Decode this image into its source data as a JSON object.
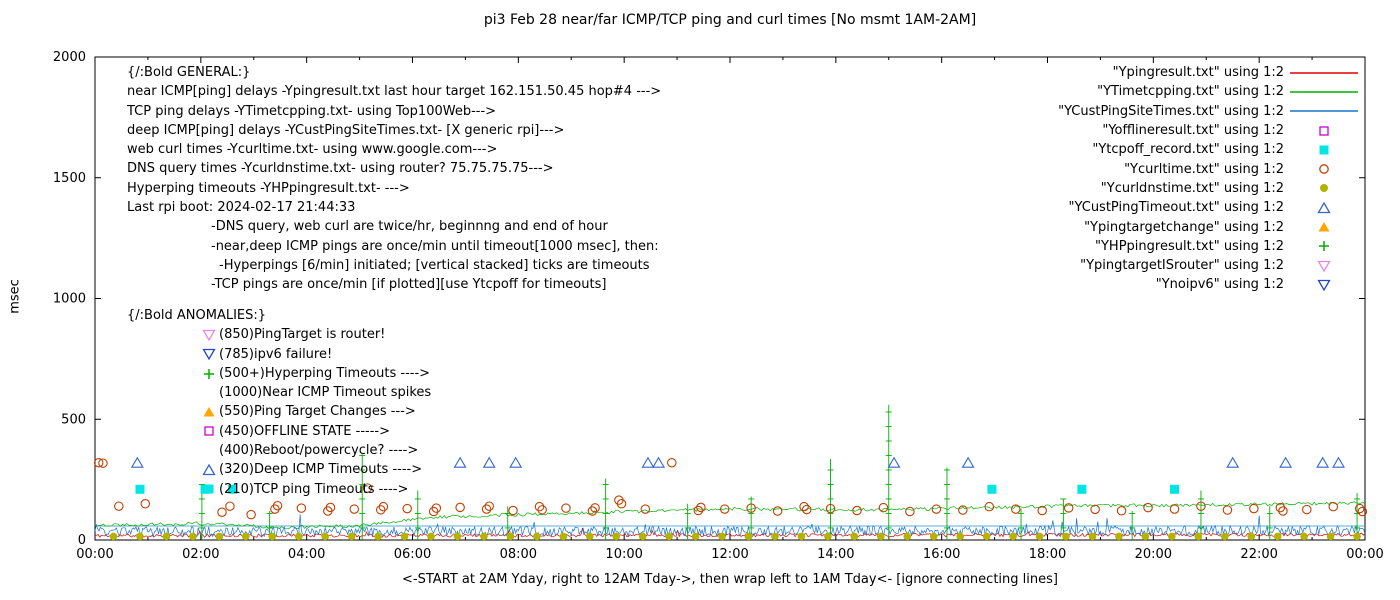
{
  "chart_data": {
    "type": "line",
    "title": "pi3 Feb 28  near/far ICMP/TCP ping and curl times [No msmt 1AM-2AM]",
    "xlabel": "<-START at 2AM Yday, right to 12AM Tday->, then wrap left to 1AM Tday<- [ignore connecting lines]",
    "ylabel": "msec",
    "xlim": [
      0,
      24
    ],
    "ylim": [
      0,
      2000
    ],
    "xtick_hours": [
      0,
      2,
      4,
      6,
      8,
      10,
      12,
      14,
      16,
      18,
      20,
      22,
      24
    ],
    "xtick_labels": [
      "00:00",
      "02:00",
      "04:00",
      "06:00",
      "08:00",
      "10:00",
      "12:00",
      "14:00",
      "16:00",
      "18:00",
      "20:00",
      "22:00",
      "00:00"
    ],
    "ytick_values": [
      0,
      500,
      1000,
      1500,
      2000
    ],
    "grid": false,
    "legend_position": "top-right",
    "colors": {
      "near_icmp_red": "#e60000",
      "tcp_green": "#00b000",
      "deep_blue": "#1874cd",
      "offline_magenta": "#cc00cc",
      "tcpoff_cyan": "#00e5e5",
      "curl_darkorange": "#c04000",
      "dns_olive": "#b3b300",
      "timeout_blue": "#3366cc",
      "targetchange_orange": "#ffa500",
      "hyperping": "#00b000",
      "isrouter_violet": "#ee82ee",
      "noipv6_blue": "#2244cc",
      "flat_line_blue": "#2090d0"
    },
    "lines": [
      {
        "name": "Ypingresult.txt",
        "color": "#e60000",
        "seed": 11,
        "step": 0.03,
        "noise": 7,
        "spike_prob": 0.01,
        "spike_max": 35,
        "trend": [
          [
            0,
            18
          ],
          [
            24,
            22
          ]
        ]
      },
      {
        "name": "YTimetcpping.txt",
        "color": "#00b000",
        "seed": 22,
        "step": 0.04,
        "noise": 7,
        "spike_prob": 0.008,
        "spike_max": 40,
        "trend": [
          [
            0,
            62
          ],
          [
            2,
            68
          ],
          [
            3.5,
            52
          ],
          [
            5,
            60
          ],
          [
            6.5,
            95
          ],
          [
            9,
            112
          ],
          [
            12,
            128
          ],
          [
            15,
            125
          ],
          [
            18,
            140
          ],
          [
            21,
            146
          ],
          [
            24,
            152
          ]
        ]
      },
      {
        "name": "YCustPingSiteTimes.txt",
        "color": "#1874cd",
        "seed": 33,
        "step": 0.025,
        "noise": 20,
        "spike_prob": 0.02,
        "spike_max": 55,
        "trend": [
          [
            0,
            34
          ],
          [
            24,
            40
          ]
        ]
      }
    ],
    "flat_line": {
      "y": 58,
      "color": "#2090d0"
    },
    "hyperping_columns": [
      {
        "x": 2.02,
        "top": 230
      },
      {
        "x": 3.3,
        "top": 120
      },
      {
        "x": 5.05,
        "top": 355
      },
      {
        "x": 6.1,
        "top": 205
      },
      {
        "x": 7.8,
        "top": 140
      },
      {
        "x": 9.65,
        "top": 255
      },
      {
        "x": 11.2,
        "top": 150
      },
      {
        "x": 12.4,
        "top": 180
      },
      {
        "x": 13.9,
        "top": 335
      },
      {
        "x": 15.0,
        "top": 560
      },
      {
        "x": 16.1,
        "top": 300
      },
      {
        "x": 17.5,
        "top": 130
      },
      {
        "x": 18.3,
        "top": 170
      },
      {
        "x": 19.6,
        "top": 120
      },
      {
        "x": 20.9,
        "top": 205
      },
      {
        "x": 22.2,
        "top": 140
      },
      {
        "x": 23.85,
        "top": 195
      }
    ],
    "scatter": [
      {
        "name": "Yofflineresult.txt",
        "marker": "square-open",
        "color": "#cc00cc",
        "points": []
      },
      {
        "name": "Ytcpoff_record.txt",
        "marker": "square-fill",
        "color": "#00e5e5",
        "points": [
          [
            0.85,
            210
          ],
          [
            2.08,
            210
          ],
          [
            2.6,
            210
          ],
          [
            16.95,
            210
          ],
          [
            18.65,
            210
          ],
          [
            20.4,
            210
          ]
        ]
      },
      {
        "name": "Ycurltime.txt",
        "marker": "circle-open",
        "color": "#c04000",
        "points": [
          [
            0.07,
            320
          ],
          [
            0.15,
            318
          ],
          [
            0.45,
            140
          ],
          [
            0.95,
            150
          ],
          [
            2.4,
            115
          ],
          [
            2.55,
            140
          ],
          [
            2.95,
            105
          ],
          [
            3.4,
            128
          ],
          [
            3.45,
            142
          ],
          [
            3.9,
            132
          ],
          [
            4.4,
            120
          ],
          [
            4.45,
            135
          ],
          [
            4.9,
            128
          ],
          [
            5.15,
            215
          ],
          [
            5.4,
            125
          ],
          [
            5.45,
            138
          ],
          [
            5.9,
            130
          ],
          [
            6.4,
            118
          ],
          [
            6.45,
            132
          ],
          [
            6.9,
            135
          ],
          [
            7.4,
            128
          ],
          [
            7.45,
            140
          ],
          [
            7.9,
            122
          ],
          [
            8.4,
            138
          ],
          [
            8.45,
            125
          ],
          [
            8.9,
            132
          ],
          [
            9.4,
            120
          ],
          [
            9.45,
            133
          ],
          [
            9.9,
            165
          ],
          [
            9.95,
            150
          ],
          [
            10.4,
            128
          ],
          [
            10.9,
            320
          ],
          [
            11.4,
            122
          ],
          [
            11.45,
            135
          ],
          [
            11.9,
            128
          ],
          [
            12.4,
            132
          ],
          [
            12.9,
            120
          ],
          [
            13.4,
            138
          ],
          [
            13.45,
            126
          ],
          [
            13.9,
            130
          ],
          [
            14.4,
            122
          ],
          [
            14.9,
            134
          ],
          [
            15.4,
            118
          ],
          [
            15.9,
            128
          ],
          [
            16.4,
            124
          ],
          [
            16.9,
            138
          ],
          [
            17.4,
            128
          ],
          [
            17.9,
            122
          ],
          [
            18.4,
            133
          ],
          [
            18.9,
            127
          ],
          [
            19.4,
            121
          ],
          [
            19.9,
            134
          ],
          [
            20.4,
            128
          ],
          [
            20.9,
            140
          ],
          [
            21.4,
            124
          ],
          [
            21.9,
            130
          ],
          [
            22.4,
            134
          ],
          [
            22.45,
            120
          ],
          [
            22.9,
            126
          ],
          [
            23.4,
            138
          ],
          [
            23.9,
            130
          ],
          [
            23.95,
            118
          ]
        ]
      },
      {
        "name": "Ycurldnstime.txt",
        "marker": "circle-fill",
        "color": "#b3b300",
        "pattern": {
          "x_start": 0.35,
          "x_step": 0.5,
          "count": 48,
          "y": 15
        },
        "points": []
      },
      {
        "name": "YCustPingTimeout.txt",
        "marker": "triangle-open",
        "color": "#3366cc",
        "points": [
          [
            0.8,
            320
          ],
          [
            6.9,
            320
          ],
          [
            7.45,
            320
          ],
          [
            7.95,
            320
          ],
          [
            10.45,
            320
          ],
          [
            10.65,
            320
          ],
          [
            15.1,
            320
          ],
          [
            16.5,
            320
          ],
          [
            21.5,
            320
          ],
          [
            22.5,
            320
          ],
          [
            23.2,
            320
          ],
          [
            23.5,
            320
          ]
        ]
      },
      {
        "name": "Ypingtargetchange",
        "marker": "triangle-fill",
        "color": "#ffa500",
        "points": []
      },
      {
        "name": "YpingtargetISrouter",
        "marker": "tridown-open",
        "color": "#ee82ee",
        "points": []
      },
      {
        "name": "Ynoipv6",
        "marker": "tridown-open",
        "color": "#2244cc",
        "points": []
      }
    ],
    "legend": [
      {
        "label": "\"Ypingresult.txt\" using 1:2",
        "marker": "line",
        "color": "#e60000"
      },
      {
        "label": "\"YTimetcpping.txt\" using 1:2",
        "marker": "line",
        "color": "#00b000"
      },
      {
        "label": "\"YCustPingSiteTimes.txt\" using 1:2",
        "marker": "line",
        "color": "#1874cd"
      },
      {
        "label": "\"Yofflineresult.txt\" using 1:2",
        "marker": "square-open",
        "color": "#cc00cc"
      },
      {
        "label": "\"Ytcpoff_record.txt\" using 1:2",
        "marker": "square-fill",
        "color": "#00e5e5"
      },
      {
        "label": "\"Ycurltime.txt\" using 1:2",
        "marker": "circle-open",
        "color": "#c04000"
      },
      {
        "label": "\"Ycurldnstime.txt\" using 1:2",
        "marker": "circle-fill",
        "color": "#b3b300"
      },
      {
        "label": "\"YCustPingTimeout.txt\" using 1:2",
        "marker": "triangle-open",
        "color": "#3366cc"
      },
      {
        "label": "\"Ypingtargetchange\" using 1:2",
        "marker": "triangle-fill",
        "color": "#ffa500"
      },
      {
        "label": "\"YHPpingresult.txt\" using 1:2",
        "marker": "plus",
        "color": "#00b000"
      },
      {
        "label": "\"YpingtargetISrouter\" using 1:2",
        "marker": "tridown-open",
        "color": "#ee82ee"
      },
      {
        "label": "\"Ynoipv6\" using 1:2",
        "marker": "tridown-open",
        "color": "#2244cc"
      }
    ]
  },
  "annotations": {
    "general": {
      "lines": [
        {
          "text": "{/:Bold GENERAL:}",
          "indent": 0
        },
        {
          "text": "near ICMP[ping] delays -Ypingresult.txt last hour target 162.151.50.45 hop#4 --->",
          "indent": 0
        },
        {
          "text": "TCP ping delays -YTimetcpping.txt- using Top100Web--->",
          "indent": 0
        },
        {
          "text": "deep ICMP[ping] delays -YCustPingSiteTimes.txt- [X generic rpi]--->",
          "indent": 0
        },
        {
          "text": "web curl times -Ycurltime.txt- using www.google.com--->",
          "indent": 0
        },
        {
          "text": "DNS query times -Ycurldnstime.txt- using router? 75.75.75.75--->",
          "indent": 0
        },
        {
          "text": "Hyperping timeouts -YHPpingresult.txt- --->",
          "indent": 0
        },
        {
          "text": "Last rpi boot: 2024-02-17 21:44:33",
          "indent": 0
        },
        {
          "text": "-DNS query, web curl are twice/hr, beginnng and end of hour",
          "indent": 84
        },
        {
          "text": "-near,deep ICMP pings are once/min until timeout[1000 msec], then:",
          "indent": 84
        },
        {
          "text": "-Hyperpings [6/min] initiated; [vertical stacked] ticks are timeouts",
          "indent": 92
        },
        {
          "text": "-TCP pings are once/min [if plotted][use Ytcpoff for timeouts]",
          "indent": 84
        }
      ]
    },
    "anomalies": {
      "header": "{/:Bold ANOMALIES:}",
      "lines": [
        {
          "marker": "tridown-open",
          "color": "#ee82ee",
          "text": "(850)PingTarget is router!"
        },
        {
          "marker": "tridown-open",
          "color": "#2244cc",
          "text": "(785)ipv6 failure!"
        },
        {
          "marker": "plus",
          "color": "#00b000",
          "text": "(500+)Hyperping Timeouts ---->"
        },
        {
          "marker": null,
          "color": null,
          "text": "(1000)Near ICMP Timeout spikes"
        },
        {
          "marker": "triangle-fill",
          "color": "#ffa500",
          "text": "(550)Ping Target Changes --->"
        },
        {
          "marker": "square-open",
          "color": "#cc00cc",
          "text": "(450)OFFLINE STATE ----->"
        },
        {
          "marker": null,
          "color": null,
          "text": "(400)Reboot/powercycle? ---->"
        },
        {
          "marker": "triangle-open",
          "color": "#3366cc",
          "text": "(320)Deep ICMP Timeouts ---->"
        },
        {
          "marker": "square-fill",
          "color": "#00e5e5",
          "text": "(210)TCP ping Timeouts ---->"
        }
      ]
    }
  }
}
